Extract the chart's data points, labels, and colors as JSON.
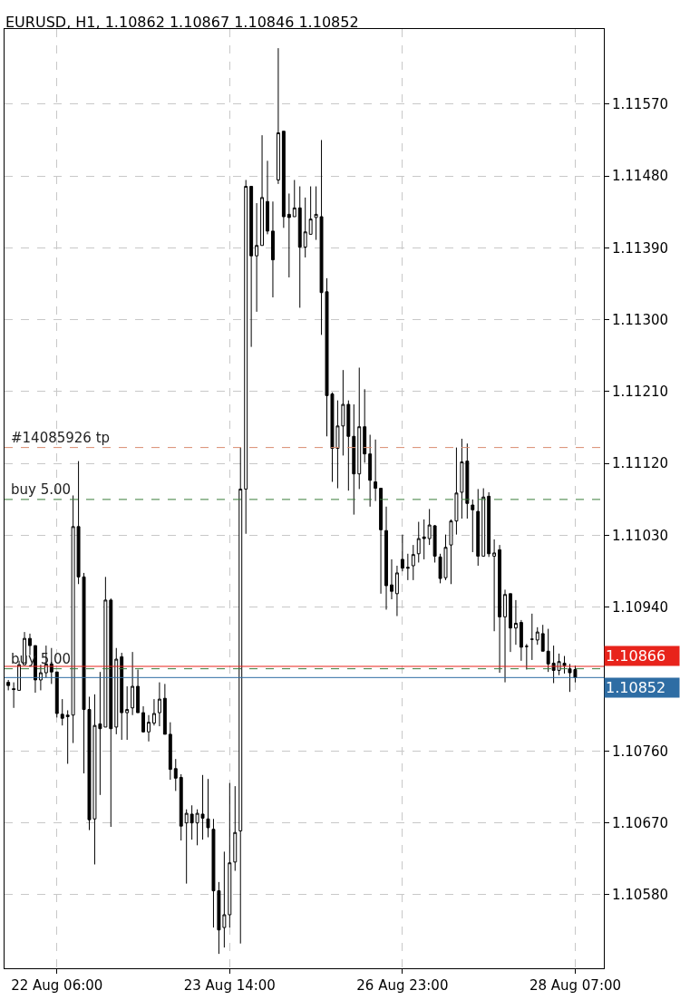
{
  "chart_data": {
    "type": "candlestick",
    "title": "EURUSD, H1, 1.10862 1.10867 1.10846 1.10852",
    "categories": [
      null,
      null,
      null,
      null,
      null,
      null,
      null,
      null,
      null,
      "22 Aug 06:00",
      null,
      null,
      null,
      null,
      null,
      null,
      null,
      null,
      null,
      null,
      null,
      null,
      null,
      null,
      null,
      null,
      null,
      null,
      null,
      null,
      null,
      null,
      null,
      null,
      null,
      null,
      null,
      null,
      null,
      null,
      null,
      "23 Aug 14:00",
      null,
      null,
      null,
      null,
      null,
      null,
      null,
      null,
      null,
      null,
      null,
      null,
      null,
      null,
      null,
      null,
      null,
      null,
      null,
      null,
      null,
      null,
      null,
      null,
      null,
      null,
      null,
      null,
      null,
      null,
      null,
      "26 Aug 23:00",
      null,
      null,
      null,
      null,
      null,
      null,
      null,
      null,
      null,
      null,
      null,
      null,
      null,
      null,
      null,
      null,
      null,
      null,
      null,
      null,
      null,
      null,
      null,
      null,
      null,
      null,
      null,
      null,
      null,
      null,
      null,
      "28 Aug 07:00"
    ],
    "ohlc": [
      [
        1.10846,
        1.10849,
        1.10836,
        1.10842
      ],
      [
        1.10838,
        1.10846,
        1.10814,
        1.10837
      ],
      [
        1.10836,
        1.10873,
        1.10836,
        1.10868
      ],
      [
        1.10868,
        1.10909,
        1.10868,
        1.10901
      ],
      [
        1.10901,
        1.10907,
        1.1088,
        1.10892
      ],
      [
        1.10892,
        1.10892,
        1.10833,
        1.10849
      ],
      [
        1.10849,
        1.10868,
        1.10836,
        1.10858
      ],
      [
        1.10858,
        1.10892,
        1.10852,
        1.10869
      ],
      [
        1.10869,
        1.10889,
        1.10844,
        1.10859
      ],
      [
        1.10859,
        1.10859,
        1.10802,
        1.10807
      ],
      [
        1.10806,
        1.10825,
        1.10792,
        1.10801
      ],
      [
        1.10803,
        1.10811,
        1.10744,
        1.10805
      ],
      [
        1.10805,
        1.1108,
        1.1077,
        1.11041
      ],
      [
        1.11041,
        1.11123,
        1.10969,
        1.10978
      ],
      [
        1.10978,
        1.10983,
        1.10732,
        1.10812
      ],
      [
        1.10812,
        1.10828,
        1.10661,
        1.10674
      ],
      [
        1.10675,
        1.10831,
        1.10618,
        1.10792
      ],
      [
        1.10794,
        1.10859,
        1.10705,
        1.10788
      ],
      [
        1.1079,
        1.10978,
        1.1079,
        1.10949
      ],
      [
        1.10949,
        1.10951,
        1.10665,
        1.10788
      ],
      [
        1.1079,
        1.10889,
        1.10781,
        1.10875
      ],
      [
        1.10878,
        1.10883,
        1.10774,
        1.10808
      ],
      [
        1.10808,
        1.10841,
        1.10774,
        1.10812
      ],
      [
        1.10814,
        1.10884,
        1.10805,
        1.10841
      ],
      [
        1.10841,
        1.10862,
        1.10808,
        1.10808
      ],
      [
        1.10808,
        1.10816,
        1.10783,
        1.10784
      ],
      [
        1.10784,
        1.10805,
        1.10772,
        1.10796
      ],
      [
        1.10795,
        1.10825,
        1.10792,
        1.10807
      ],
      [
        1.10808,
        1.10846,
        1.10791,
        1.10825
      ],
      [
        1.10826,
        1.10844,
        1.10781,
        1.10781
      ],
      [
        1.10781,
        1.10796,
        1.10724,
        1.10737
      ],
      [
        1.10738,
        1.1075,
        1.1071,
        1.10726
      ],
      [
        1.10727,
        1.10731,
        1.10648,
        1.10666
      ],
      [
        1.1067,
        1.10687,
        1.10594,
        1.10682
      ],
      [
        1.10681,
        1.10692,
        1.10649,
        1.1067
      ],
      [
        1.1067,
        1.10687,
        1.10642,
        1.10682
      ],
      [
        1.10681,
        1.1073,
        1.10649,
        1.10676
      ],
      [
        1.10675,
        1.10725,
        1.10652,
        1.10664
      ],
      [
        1.10662,
        1.10675,
        1.10539,
        1.10585
      ],
      [
        1.10585,
        1.10596,
        1.10506,
        1.10536
      ],
      [
        1.10539,
        1.10634,
        1.10514,
        1.10555
      ],
      [
        1.10555,
        1.1072,
        1.10539,
        1.1062
      ],
      [
        1.10621,
        1.10716,
        1.1061,
        1.10658
      ],
      [
        1.1066,
        1.1114,
        1.10519,
        1.11088
      ],
      [
        1.11088,
        1.11475,
        1.11032,
        1.11467
      ],
      [
        1.11467,
        1.11467,
        1.11266,
        1.1138
      ],
      [
        1.1138,
        1.11446,
        1.1131,
        1.11393
      ],
      [
        1.11393,
        1.11531,
        1.11393,
        1.11453
      ],
      [
        1.11448,
        1.11499,
        1.11407,
        1.11411
      ],
      [
        1.11411,
        1.11448,
        1.11328,
        1.11375
      ],
      [
        1.11475,
        1.1164,
        1.1147,
        1.11534
      ],
      [
        1.11536,
        1.11536,
        1.11415,
        1.11429
      ],
      [
        1.11432,
        1.11458,
        1.11353,
        1.11428
      ],
      [
        1.11429,
        1.11475,
        1.11429,
        1.1144
      ],
      [
        1.1144,
        1.11467,
        1.11315,
        1.11391
      ],
      [
        1.11391,
        1.11453,
        1.11378,
        1.1141
      ],
      [
        1.11407,
        1.11467,
        1.11407,
        1.11426
      ],
      [
        1.11428,
        1.11467,
        1.114,
        1.11432
      ],
      [
        1.11429,
        1.11525,
        1.11281,
        1.11334
      ],
      [
        1.11335,
        1.11352,
        1.11154,
        1.11205
      ],
      [
        1.11207,
        1.11209,
        1.11097,
        1.11139
      ],
      [
        1.11139,
        1.11199,
        1.11089,
        1.11167
      ],
      [
        1.11167,
        1.11237,
        1.1113,
        1.11194
      ],
      [
        1.11194,
        1.11199,
        1.11086,
        1.11154
      ],
      [
        1.11154,
        1.11194,
        1.11056,
        1.11107
      ],
      [
        1.11107,
        1.1124,
        1.11088,
        1.11166
      ],
      [
        1.11166,
        1.11213,
        1.11121,
        1.11132
      ],
      [
        1.11132,
        1.11156,
        1.11066,
        1.11099
      ],
      [
        1.11097,
        1.1115,
        1.11073,
        1.11089
      ],
      [
        1.11089,
        1.11089,
        1.10957,
        1.11037
      ],
      [
        1.11036,
        1.11066,
        1.10937,
        1.10967
      ],
      [
        1.10968,
        1.11,
        1.1095,
        1.1096
      ],
      [
        1.10957,
        1.10992,
        1.10929,
        1.10983
      ],
      [
        1.11,
        1.11031,
        1.10985,
        1.10989
      ],
      [
        1.1099,
        1.11007,
        1.10974,
        1.10989
      ],
      [
        1.10992,
        1.11018,
        1.10974,
        1.11006
      ],
      [
        1.11007,
        1.11047,
        1.10996,
        1.11026
      ],
      [
        1.11028,
        1.1105,
        1.11,
        1.11026
      ],
      [
        1.11026,
        1.11063,
        1.11018,
        1.11043
      ],
      [
        1.11042,
        1.11043,
        1.10996,
        1.11004
      ],
      [
        1.11003,
        1.11007,
        1.1097,
        1.10976
      ],
      [
        1.10977,
        1.11031,
        1.10974,
        1.11015
      ],
      [
        1.11018,
        1.1105,
        1.10969,
        1.11048
      ],
      [
        1.11048,
        1.1114,
        1.11031,
        1.11083
      ],
      [
        1.11084,
        1.11151,
        1.11051,
        1.11122
      ],
      [
        1.11123,
        1.11145,
        1.11051,
        1.1107
      ],
      [
        1.11068,
        1.11075,
        1.11009,
        1.11062
      ],
      [
        1.1106,
        1.11088,
        1.10992,
        1.11004
      ],
      [
        1.11004,
        1.11089,
        1.11004,
        1.11078
      ],
      [
        1.11079,
        1.11084,
        1.11003,
        1.11007
      ],
      [
        1.11004,
        1.11025,
        1.1091,
        1.11008
      ],
      [
        1.11012,
        1.11018,
        1.10858,
        1.10928
      ],
      [
        1.10928,
        1.10962,
        1.10846,
        1.10956
      ],
      [
        1.10957,
        1.10957,
        1.10884,
        1.10914
      ],
      [
        1.10914,
        1.10949,
        1.10893,
        1.1092
      ],
      [
        1.10921,
        1.10924,
        1.10873,
        1.1089
      ],
      [
        1.10891,
        1.10894,
        1.10862,
        1.10891
      ],
      [
        1.109,
        1.10932,
        1.10874,
        1.109
      ],
      [
        1.10899,
        1.10915,
        1.10893,
        1.10909
      ],
      [
        1.10907,
        1.10918,
        1.10885,
        1.10885
      ],
      [
        1.10885,
        1.10913,
        1.10859,
        1.10869
      ],
      [
        1.1087,
        1.10892,
        1.10845,
        1.10861
      ],
      [
        1.10861,
        1.10882,
        1.10855,
        1.10872
      ],
      [
        1.1087,
        1.10879,
        1.10857,
        1.10867
      ],
      [
        1.10863,
        1.10869,
        1.10834,
        1.10858
      ],
      [
        1.10862,
        1.10867,
        1.10846,
        1.10852
      ]
    ],
    "color": "#000000",
    "ylim": [
      1.10488,
      1.11664
    ],
    "yticks": [
      {
        "value": 1.1058,
        "label": "1.10580"
      },
      {
        "value": 1.1067,
        "label": "1.10670"
      },
      {
        "value": 1.1076,
        "label": "1.10760"
      },
      {
        "value": 1.1094,
        "label": "1.10940"
      },
      {
        "value": 1.1103,
        "label": "1.11030"
      },
      {
        "value": 1.1112,
        "label": "1.11120"
      },
      {
        "value": 1.1121,
        "label": "1.11210"
      },
      {
        "value": 1.113,
        "label": "1.11300"
      },
      {
        "value": 1.1139,
        "label": "1.11390"
      },
      {
        "value": 1.1148,
        "label": "1.11480"
      },
      {
        "value": 1.1157,
        "label": "1.11570"
      }
    ],
    "grid": true,
    "ref_lines": [
      {
        "axis": "y",
        "value": 1.1114,
        "label": "#14085926 tp",
        "color": "#d98c6f",
        "line_style": "dashed"
      },
      {
        "axis": "y",
        "value": 1.11075,
        "label": "buy 5.00",
        "color": "#3c7d3c",
        "line_style": "dashed"
      },
      {
        "axis": "y",
        "value": 1.10863,
        "label": "buy 5.00",
        "color": "#3c7d3c",
        "line_style": "dashed"
      },
      {
        "axis": "y",
        "value": 1.10866,
        "label": "1.10866",
        "color": "#e8231b",
        "line_style": "solid"
      },
      {
        "axis": "y",
        "value": 1.10852,
        "label": "1.10852",
        "color": "#2e6da4",
        "line_style": "solid"
      }
    ]
  }
}
